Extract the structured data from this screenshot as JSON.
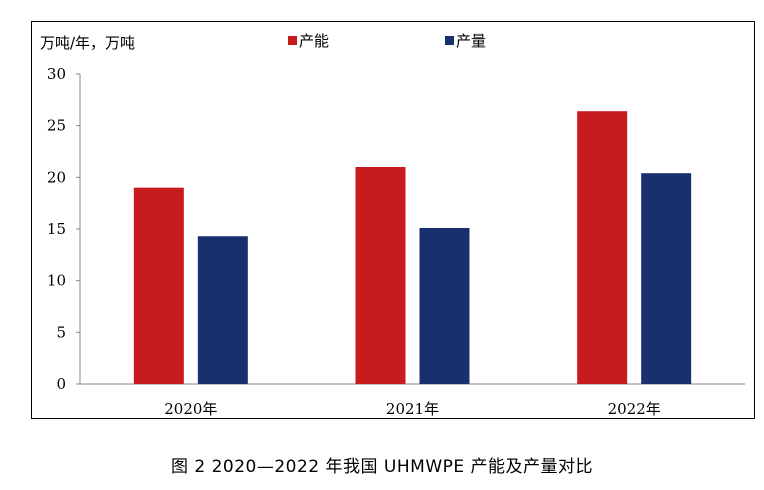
{
  "chart_data": {
    "type": "bar",
    "ylabel": "万吨/年，万吨",
    "categories": [
      "2020年",
      "2021年",
      "2022年"
    ],
    "series": [
      {
        "name": "产能",
        "values": [
          19,
          21,
          26.4
        ],
        "color": "#c81b1e"
      },
      {
        "name": "产量",
        "values": [
          14.3,
          15.1,
          20.4
        ],
        "color": "#18306e"
      }
    ],
    "ylim": [
      0,
      30
    ],
    "yticks": [
      0,
      5,
      10,
      15,
      20,
      25,
      30
    ],
    "grid": false,
    "legend_position": "top"
  },
  "caption": "图 2   2020—2022 年我国 UHMWPE 产能及产量对比"
}
